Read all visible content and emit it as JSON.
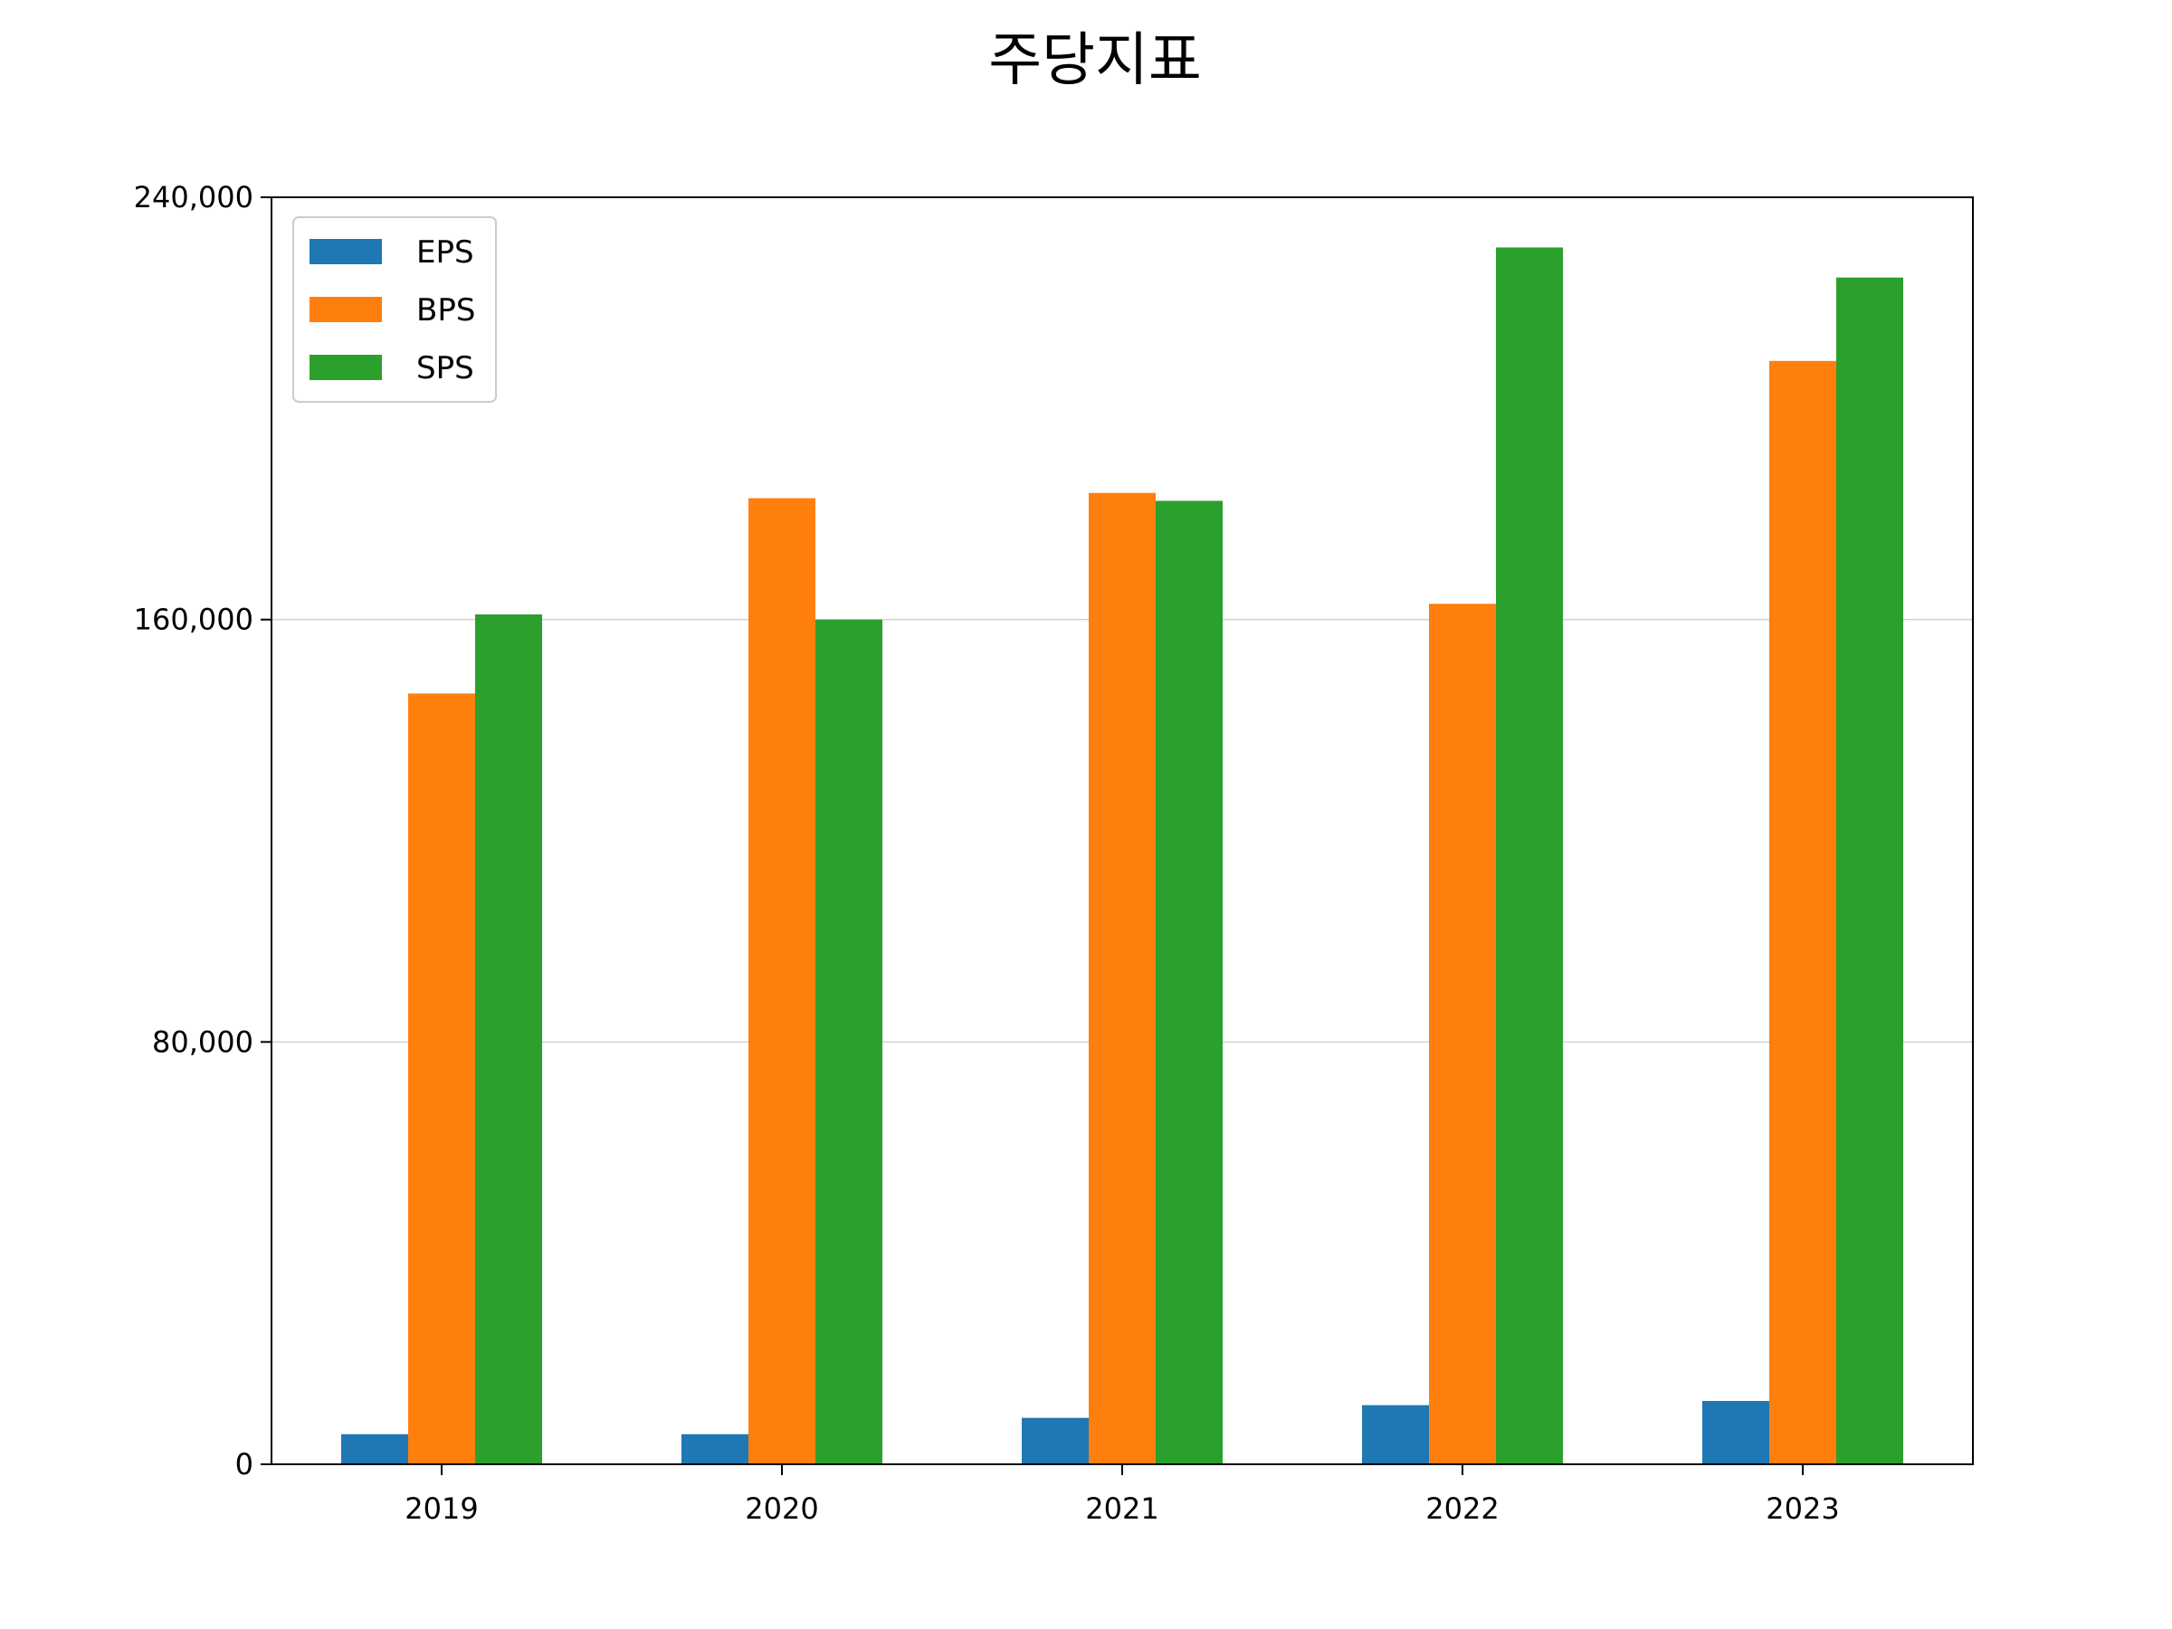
{
  "chart_data": {
    "type": "bar",
    "title": "주당지표",
    "xlabel": "",
    "ylabel": "",
    "categories": [
      "2019",
      "2020",
      "2021",
      "2022",
      "2023"
    ],
    "series": [
      {
        "name": "EPS",
        "color": "#1f77b4",
        "values": [
          5700,
          5700,
          8800,
          11200,
          12000
        ]
      },
      {
        "name": "BPS",
        "color": "#ff7f0e",
        "values": [
          146000,
          183000,
          184000,
          163000,
          209000
        ]
      },
      {
        "name": "SPS",
        "color": "#2ca02c",
        "values": [
          161000,
          160000,
          182500,
          230500,
          224800
        ]
      }
    ],
    "ylim": [
      0,
      240000
    ],
    "yticks": [
      0,
      80000,
      160000,
      240000
    ],
    "ytick_labels": [
      "0",
      "80,000",
      "160,000",
      "240,000"
    ],
    "grid": "horizontal",
    "legend_position": "top-left"
  }
}
